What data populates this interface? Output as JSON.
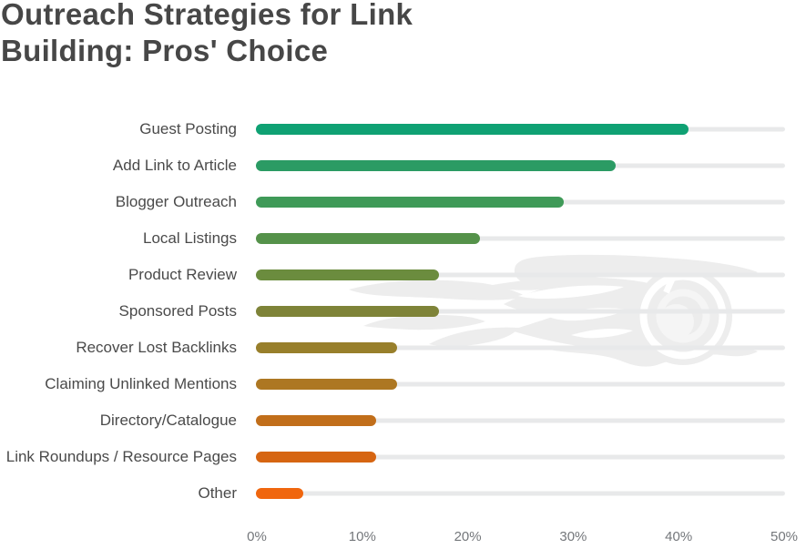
{
  "title": "Outreach Strategies for Link Building: Pros' Choice",
  "title_lines": [
    "Outreach Strategies for Link",
    "Building: Pros' Choice"
  ],
  "watermark": "semrush-fireball-logo",
  "colors": {
    "title_text": "#474747",
    "category_text": "#4a4a4a",
    "axis_text": "#74777b",
    "bar_track": "#e8e9ea",
    "watermark": "#ededed"
  },
  "chart_data": {
    "type": "bar",
    "orientation": "horizontal",
    "title": "Outreach Strategies for Link Building: Pros' Choice",
    "categories": [
      "Guest Posting",
      "Add Link to Article",
      "Blogger Outreach",
      "Local Listings",
      "Product Review",
      "Sponsored Posts",
      "Recover Lost Backlinks",
      "Claiming Unlinked Mentions",
      "Directory/Catalogue",
      "Link Roundups / Resource Pages",
      "Other"
    ],
    "values": [
      41,
      34,
      29,
      21,
      17,
      17,
      13,
      13,
      11,
      11,
      4
    ],
    "unit": "%",
    "bar_colors": [
      "#0fa173",
      "#2b9b64",
      "#3f9a58",
      "#55924a",
      "#6b8c3e",
      "#7e8338",
      "#987f2b",
      "#ad7722",
      "#c16e1a",
      "#d66511",
      "#f0660e"
    ],
    "xlabel": "",
    "ylabel": "",
    "xlim": [
      0,
      50
    ],
    "xticks": [
      "0%",
      "10%",
      "20%",
      "30%",
      "40%",
      "50%"
    ],
    "grid": false,
    "legend": false
  }
}
